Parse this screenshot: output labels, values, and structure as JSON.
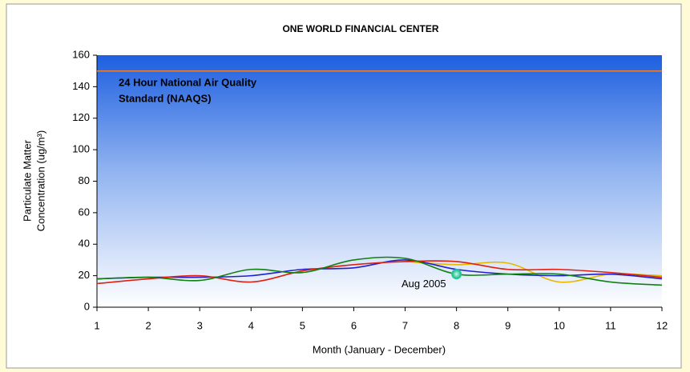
{
  "chart_data": {
    "type": "line",
    "title": "ONE WORLD FINANCIAL CENTER",
    "x_label": "Month (January - December)",
    "y_label": [
      "Particulate Matter",
      "Concentration (ug/m³)"
    ],
    "x": [
      1,
      2,
      3,
      4,
      5,
      6,
      7,
      8,
      9,
      10,
      11,
      12
    ],
    "series": [
      {
        "color": "#e6b800",
        "values": [
          null,
          null,
          null,
          null,
          null,
          null,
          29,
          27,
          28,
          16,
          21,
          20
        ]
      },
      {
        "color": "#2020d0",
        "values": [
          18,
          19,
          19,
          20,
          24,
          25,
          30,
          24,
          21,
          20,
          21,
          18
        ]
      },
      {
        "color": "#e02010",
        "values": [
          15,
          18,
          20,
          16,
          23,
          27,
          29,
          29,
          24,
          24,
          22,
          19
        ]
      },
      {
        "color": "#108010",
        "values": [
          18,
          19,
          17,
          24,
          22,
          30,
          31,
          21,
          21,
          21,
          16,
          14
        ]
      }
    ],
    "reference_line": {
      "value": 150,
      "color": "#e8803a",
      "label": [
        "24 Hour National Air Quality",
        "Standard (NAAQS)"
      ]
    },
    "highlight": {
      "x": 8,
      "y": 21,
      "label": "Aug 2005",
      "color": "#20d0a0"
    },
    "xlim": [
      1,
      12
    ],
    "xticks": [
      1,
      2,
      3,
      4,
      5,
      6,
      7,
      8,
      9,
      10,
      11,
      12
    ],
    "ylim": [
      0,
      160
    ],
    "yticks": [
      0,
      20,
      40,
      60,
      80,
      100,
      120,
      140,
      160
    ]
  }
}
